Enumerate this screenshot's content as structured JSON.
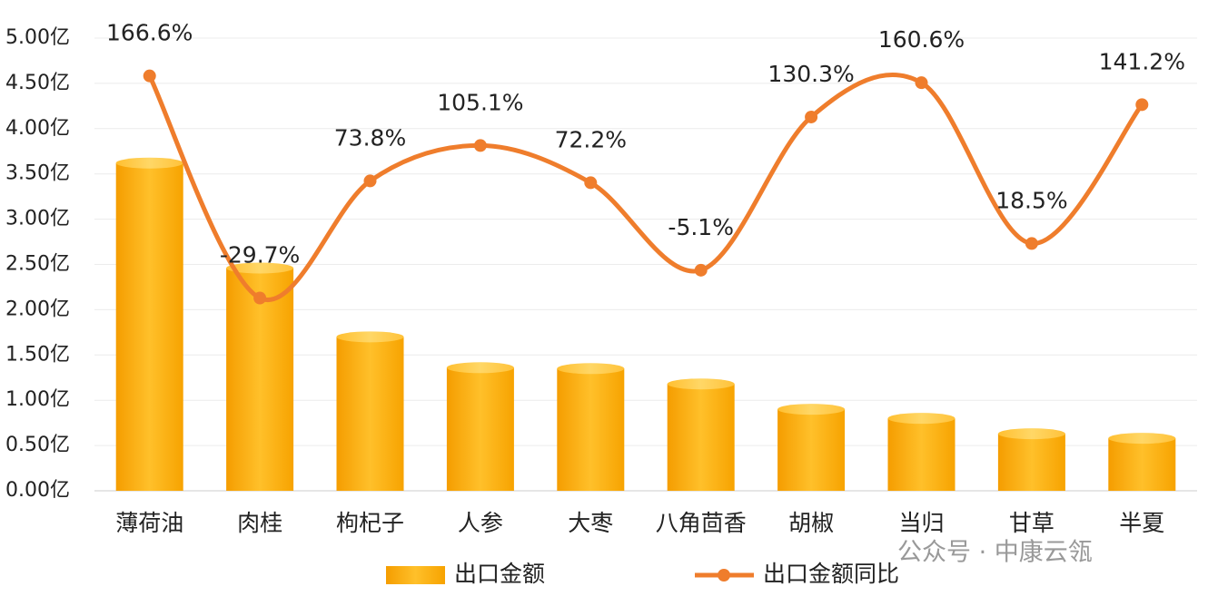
{
  "chart_data": {
    "type": "bar-line",
    "categories": [
      "薄荷油",
      "肉桂",
      "枸杞子",
      "人参",
      "大枣",
      "八角茴香",
      "胡椒",
      "当归",
      "甘草",
      "半夏"
    ],
    "series": [
      {
        "name": "出口金额",
        "type": "bar",
        "color": "#f7a600",
        "values": [
          3.62,
          2.46,
          1.7,
          1.36,
          1.35,
          1.18,
          0.9,
          0.8,
          0.63,
          0.58
        ]
      },
      {
        "name": "出口金额同比",
        "type": "line",
        "axis": "y2",
        "color": "#ef7d2c",
        "values": [
          166.6,
          -29.7,
          73.8,
          105.1,
          72.2,
          -5.1,
          130.3,
          160.6,
          18.5,
          141.2
        ],
        "value_labels": [
          "166.6%",
          "-29.7%",
          "73.8%",
          "105.1%",
          "72.2%",
          "-5.1%",
          "130.3%",
          "160.6%",
          "18.5%",
          "141.2%"
        ]
      }
    ],
    "ylim": [
      0,
      5
    ],
    "yticks": [
      {
        "value": 0,
        "label": "0.00亿"
      },
      {
        "value": 0.5,
        "label": "0.50亿"
      },
      {
        "value": 1,
        "label": "1.00亿"
      },
      {
        "value": 1.5,
        "label": "1.50亿"
      },
      {
        "value": 2,
        "label": "2.00亿"
      },
      {
        "value": 2.5,
        "label": "2.50亿"
      },
      {
        "value": 3,
        "label": "3.00亿"
      },
      {
        "value": 3.5,
        "label": "3.50亿"
      },
      {
        "value": 4,
        "label": "4.00亿"
      },
      {
        "value": 4.5,
        "label": "4.50亿"
      },
      {
        "value": 5,
        "label": "5.00亿"
      }
    ],
    "y2lim": [
      -200,
      200
    ],
    "grid": true,
    "legend": "bottom",
    "watermark": "公众号 · 中康云瓴"
  }
}
